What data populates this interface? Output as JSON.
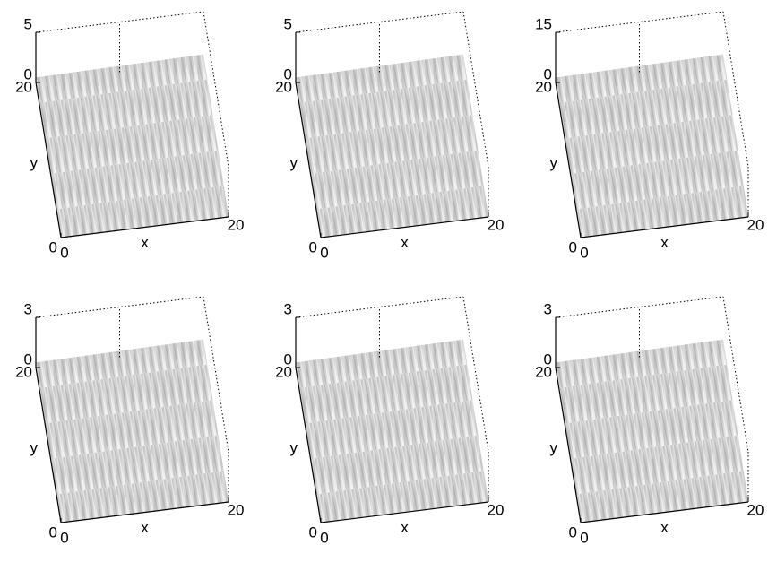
{
  "chart_data": [
    {
      "type": "surface",
      "xlabel": "x",
      "ylabel": "y",
      "xlim": [
        0,
        20
      ],
      "ylim": [
        0,
        20
      ],
      "zlim": [
        0,
        5
      ],
      "xticks": [
        0,
        20
      ],
      "yticks": [
        0,
        20
      ],
      "zticks": [
        0,
        5
      ]
    },
    {
      "type": "surface",
      "xlabel": "x",
      "ylabel": "y",
      "xlim": [
        0,
        20
      ],
      "ylim": [
        0,
        20
      ],
      "zlim": [
        0,
        5
      ],
      "xticks": [
        0,
        20
      ],
      "yticks": [
        0,
        20
      ],
      "zticks": [
        0,
        5
      ]
    },
    {
      "type": "surface",
      "xlabel": "x",
      "ylabel": "y",
      "xlim": [
        0,
        20
      ],
      "ylim": [
        0,
        20
      ],
      "zlim": [
        0,
        15
      ],
      "xticks": [
        0,
        20
      ],
      "yticks": [
        0,
        20
      ],
      "zticks": [
        0,
        15
      ]
    },
    {
      "type": "surface",
      "xlabel": "x",
      "ylabel": "y",
      "xlim": [
        0,
        20
      ],
      "ylim": [
        0,
        20
      ],
      "zlim": [
        0,
        3
      ],
      "xticks": [
        0,
        20
      ],
      "yticks": [
        0,
        20
      ],
      "zticks": [
        0,
        3
      ]
    },
    {
      "type": "surface",
      "xlabel": "x",
      "ylabel": "y",
      "xlim": [
        0,
        20
      ],
      "ylim": [
        0,
        20
      ],
      "zlim": [
        0,
        3
      ],
      "xticks": [
        0,
        20
      ],
      "yticks": [
        0,
        20
      ],
      "zticks": [
        0,
        3
      ]
    },
    {
      "type": "surface",
      "xlabel": "x",
      "ylabel": "y",
      "xlim": [
        0,
        20
      ],
      "ylim": [
        0,
        20
      ],
      "zlim": [
        0,
        3
      ],
      "xticks": [
        0,
        20
      ],
      "yticks": [
        0,
        20
      ],
      "zticks": [
        0,
        3
      ]
    }
  ]
}
